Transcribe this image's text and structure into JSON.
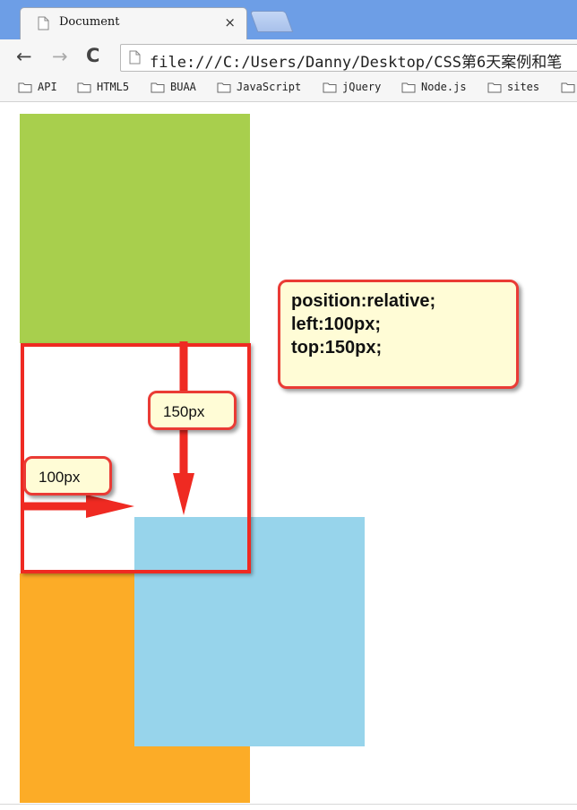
{
  "browser": {
    "tab": {
      "title": "Document",
      "close_symbol": "×"
    },
    "toolbar": {
      "back_symbol": "←",
      "forward_symbol": "→",
      "reload_symbol": "C",
      "url": "file:///C:/Users/Danny/Desktop/CSS第6天案例和笔"
    },
    "bookmarks": [
      "API",
      "HTML5",
      "BUAA",
      "JavaScript",
      "jQuery",
      "Node.js",
      "sites"
    ]
  },
  "demo": {
    "callout": {
      "line1": "position:relative;",
      "line2": "left:100px;",
      "line3": "top:150px;"
    },
    "label_top": "150px",
    "label_left": "100px"
  },
  "colors": {
    "green": "#a8cf4d",
    "orange": "#fcac27",
    "blue": "#97d4eb",
    "red": "#ef2a22",
    "callout_bg": "#fffcd6"
  }
}
